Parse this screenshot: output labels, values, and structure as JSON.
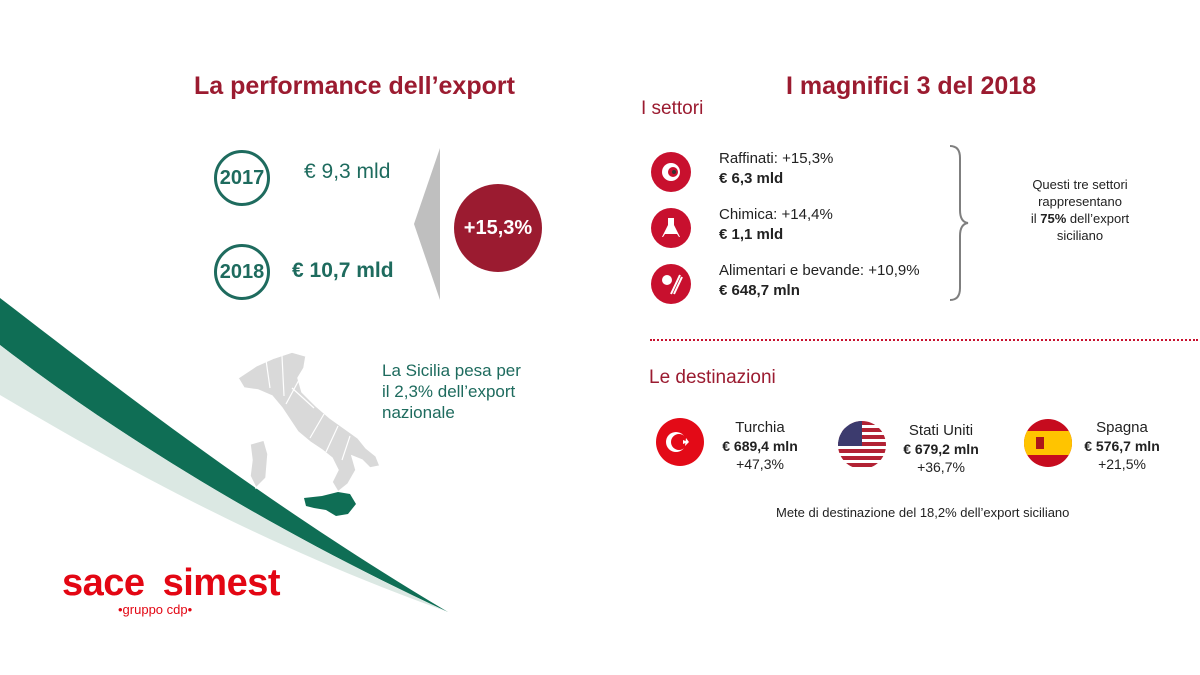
{
  "left": {
    "title": "La performance dell’export",
    "year1": "2017",
    "value1": "€ 9,3 mld",
    "year2": "2018",
    "value2": "€ 10,7 mld",
    "growth": "+15,3%",
    "sicily_line1": "La Sicilia pesa per",
    "sicily_line2": "il 2,3% dell’export",
    "sicily_line3": "nazionale"
  },
  "right": {
    "title": "I magnifici 3 del 2018",
    "sectors_heading": "I settori",
    "sectors": [
      {
        "label": "Raffinati: +15,3%",
        "value": "€ 6,3 mld",
        "icon": "refinery-icon"
      },
      {
        "label": "Chimica: +14,4%",
        "value": "€ 1,1 mld",
        "icon": "flask-icon"
      },
      {
        "label": "Alimentari e bevande: +10,9%",
        "value": "€ 648,7 mln",
        "icon": "food-icon"
      }
    ],
    "sectors_note": {
      "line1": "Questi tre settori",
      "line2": "rappresentano",
      "line3_pre": "il ",
      "line3_bold": "75%",
      "line3_post": " dell’export",
      "line4": "siciliano"
    },
    "destinations_heading": "Le destinazioni",
    "destinations": [
      {
        "name": "Turchia",
        "value": "€ 689,4 mln",
        "pct": "+47,3%",
        "flag": "turkey-flag-icon"
      },
      {
        "name": "Stati Uniti",
        "value": "€ 679,2 mln",
        "pct": "+36,7%",
        "flag": "usa-flag-icon"
      },
      {
        "name": "Spagna",
        "value": "€ 576,7 mln",
        "pct": "+21,5%",
        "flag": "spain-flag-icon"
      }
    ],
    "footnote": "Mete di destinazione del 18,2% dell’export siciliano"
  },
  "logo": {
    "word1": "sace",
    "word2": "simest",
    "tagline": "•gruppo cdp•"
  },
  "colors": {
    "brand_red": "#9b1b30",
    "accent_red": "#c8102e",
    "teal": "#1e6b5e",
    "swoosh_green": "#0f6e55"
  }
}
